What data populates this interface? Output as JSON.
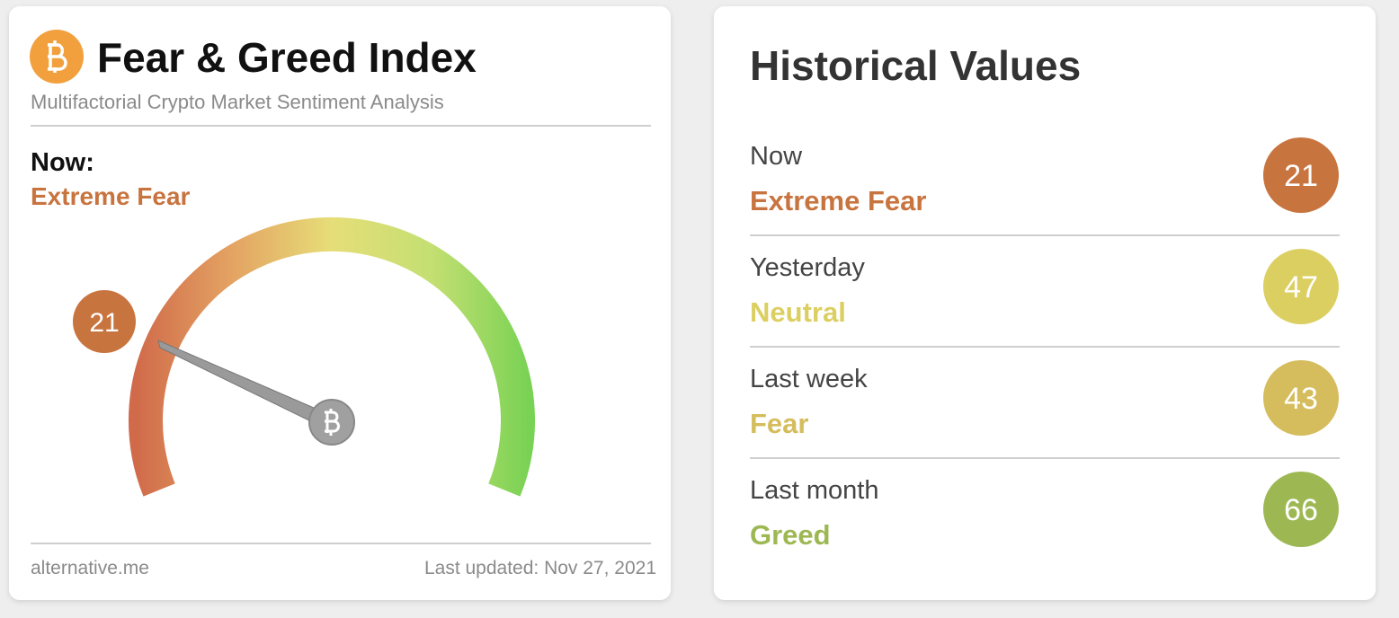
{
  "header": {
    "title": "Fear & Greed Index",
    "subtitle": "Multifactorial Crypto Market Sentiment Analysis"
  },
  "now": {
    "label": "Now:",
    "classification": "Extreme Fear",
    "value": 21,
    "color": "#c8743f"
  },
  "footer": {
    "source": "alternative.me",
    "updated": "Last updated: Nov 27, 2021"
  },
  "history": {
    "title": "Historical Values",
    "rows": [
      {
        "period": "Now",
        "classification": "Extreme Fear",
        "value": 21,
        "color": "#c8743f"
      },
      {
        "period": "Yesterday",
        "classification": "Neutral",
        "value": 47,
        "color": "#dccf62"
      },
      {
        "period": "Last week",
        "classification": "Fear",
        "value": 43,
        "color": "#d5bd5d"
      },
      {
        "period": "Last month",
        "classification": "Greed",
        "value": 66,
        "color": "#9db853"
      }
    ]
  }
}
